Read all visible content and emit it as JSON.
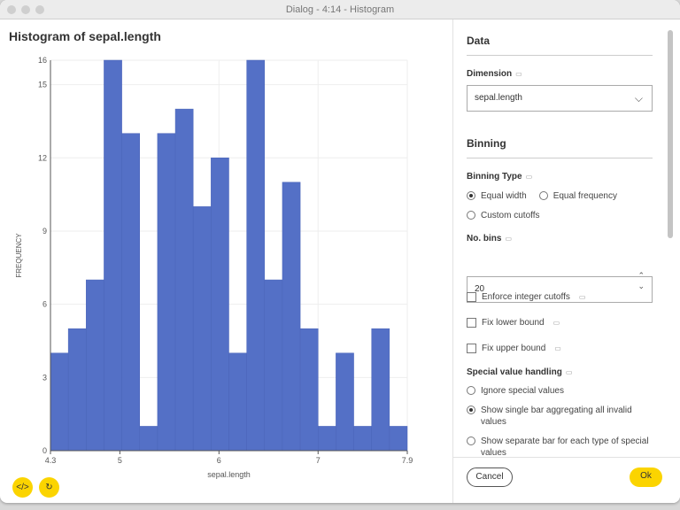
{
  "window": {
    "title": "Dialog - 4:14 - Histogram"
  },
  "chart_data": {
    "type": "bar",
    "title": "Histogram of sepal.length",
    "xlabel": "sepal.length",
    "ylabel": "FREQUENCY",
    "bin_edges": [
      4.3,
      4.48,
      4.66,
      4.84,
      5.02,
      5.2,
      5.38,
      5.56,
      5.74,
      5.92,
      6.1,
      6.28,
      6.46,
      6.64,
      6.82,
      7.0,
      7.18,
      7.36,
      7.54,
      7.72,
      7.9
    ],
    "values": [
      4,
      5,
      7,
      16,
      13,
      1,
      13,
      14,
      10,
      12,
      4,
      16,
      7,
      11,
      5,
      1,
      4,
      1,
      5,
      1
    ],
    "xlim": [
      4.3,
      7.9
    ],
    "ylim": [
      0,
      16
    ],
    "xticks": [
      "4.3",
      "5",
      "6",
      "7",
      "7.9"
    ],
    "yticks": [
      "0",
      "3",
      "6",
      "9",
      "12",
      "15",
      "16"
    ],
    "bar_color": "#5470c6",
    "grid": true
  },
  "left_buttons": {
    "code_icon": "code-icon",
    "refresh_icon": "refresh-icon"
  },
  "settings": {
    "data_heading": "Data",
    "dimension_label": "Dimension",
    "dimension_value": "sepal.length",
    "binning_heading": "Binning",
    "binning_type_label": "Binning Type",
    "equal_width": "Equal width",
    "equal_frequency": "Equal frequency",
    "custom_cutoffs": "Custom cutoffs",
    "bins_label": "No. bins",
    "bins_value": "20",
    "enforce_integer": "Enforce integer cutoffs",
    "fix_lower": "Fix lower bound",
    "fix_upper": "Fix upper bound",
    "special_label": "Special value handling",
    "ignore_special": "Ignore special values",
    "single_bar": "Show single bar aggregating all invalid values",
    "separate_bar": "Show separate bar for each type of special values"
  },
  "footer": {
    "cancel": "Cancel",
    "ok": "Ok"
  },
  "colors": {
    "accent": "#fbd400",
    "bar": "#5470c6"
  }
}
